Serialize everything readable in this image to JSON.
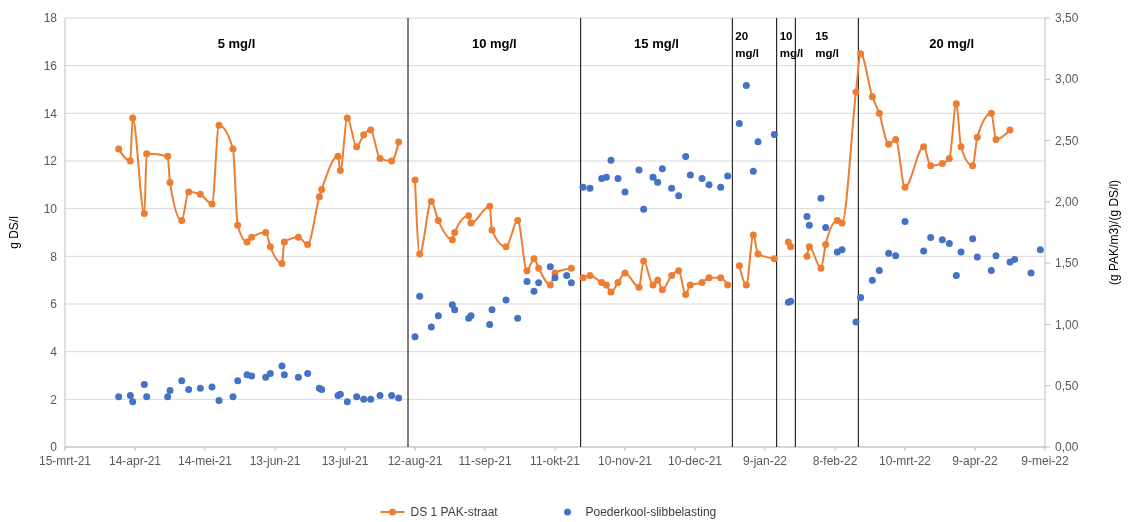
{
  "chart_data": {
    "type": "line",
    "ylabel": "g DS/l",
    "y2label": "(g PAK/m3)/(g DS/l)",
    "xlim": [
      "2021-03-15",
      "2022-05-09"
    ],
    "xticks": [
      {
        "value": "2021-03-15",
        "label": "15-mrt-21"
      },
      {
        "value": "2021-04-14",
        "label": "14-apr-21"
      },
      {
        "value": "2021-05-14",
        "label": "14-mei-21"
      },
      {
        "value": "2021-06-13",
        "label": "13-jun-21"
      },
      {
        "value": "2021-07-13",
        "label": "13-jul-21"
      },
      {
        "value": "2021-08-12",
        "label": "12-aug-21"
      },
      {
        "value": "2021-09-11",
        "label": "11-sep-21"
      },
      {
        "value": "2021-10-11",
        "label": "11-okt-21"
      },
      {
        "value": "2021-11-10",
        "label": "10-nov-21"
      },
      {
        "value": "2021-12-10",
        "label": "10-dec-21"
      },
      {
        "value": "2022-01-09",
        "label": "9-jan-22"
      },
      {
        "value": "2022-02-08",
        "label": "8-feb-22"
      },
      {
        "value": "2022-03-10",
        "label": "10-mrt-22"
      },
      {
        "value": "2022-04-09",
        "label": "9-apr-22"
      },
      {
        "value": "2022-05-09",
        "label": "9-mei-22"
      }
    ],
    "ylim": [
      0,
      18
    ],
    "yticks": [
      0,
      2,
      4,
      6,
      8,
      10,
      12,
      14,
      16,
      18
    ],
    "y2lim": [
      0,
      3.5
    ],
    "y2ticks": [
      {
        "value": 0,
        "label": "0,00"
      },
      {
        "value": 0.5,
        "label": "0,50"
      },
      {
        "value": 1,
        "label": "1,00"
      },
      {
        "value": 1.5,
        "label": "1,50"
      },
      {
        "value": 2,
        "label": "2,00"
      },
      {
        "value": 2.5,
        "label": "2,50"
      },
      {
        "value": 3,
        "label": "3,00"
      },
      {
        "value": 3.5,
        "label": "3,50"
      }
    ],
    "grid": "y",
    "legend": "bottom",
    "series": [
      {
        "name": "DS 1 PAK-straat",
        "color": "#ed7d31",
        "marker": "circle",
        "x": [
          "2021-04-07",
          "2021-04-12",
          "2021-04-13",
          "2021-04-18",
          "2021-04-19",
          "2021-04-28",
          "2021-04-29",
          "2021-05-04",
          "2021-05-07",
          "2021-05-12",
          "2021-05-17",
          "2021-05-20",
          "2021-05-26",
          "2021-05-28",
          "2021-06-01",
          "2021-06-03",
          "2021-06-09",
          "2021-06-11",
          "2021-06-16",
          "2021-06-17",
          "2021-06-23",
          "2021-06-27",
          "2021-07-02",
          "2021-07-03",
          "2021-07-10",
          "2021-07-11",
          "2021-07-14",
          "2021-07-18",
          "2021-07-21",
          "2021-07-24",
          "2021-07-28",
          "2021-08-02",
          "2021-08-05",
          "2021-08-09",
          "2021-08-12",
          "2021-08-14",
          "2021-08-19",
          "2021-08-22",
          "2021-08-28",
          "2021-08-29",
          "2021-09-04",
          "2021-09-05",
          "2021-09-13",
          "2021-09-14",
          "2021-09-20",
          "2021-09-25",
          "2021-09-29",
          "2021-10-02",
          "2021-10-04",
          "2021-10-09",
          "2021-10-11",
          "2021-10-18",
          "2021-10-22",
          "2021-10-23",
          "2021-10-26",
          "2021-10-31",
          "2021-11-02",
          "2021-11-04",
          "2021-11-07",
          "2021-11-10",
          "2021-11-16",
          "2021-11-18",
          "2021-11-22",
          "2021-11-24",
          "2021-11-26",
          "2021-11-30",
          "2021-12-03",
          "2021-12-06",
          "2021-12-08",
          "2021-12-13",
          "2021-12-16",
          "2021-12-21",
          "2021-12-24",
          "2021-12-26",
          "2021-12-29",
          "2022-01-01",
          "2022-01-04",
          "2022-01-06",
          "2022-01-13",
          "2022-01-14",
          "2022-01-19",
          "2022-01-20",
          "2022-01-22",
          "2022-01-27",
          "2022-01-28",
          "2022-02-02",
          "2022-02-04",
          "2022-02-09",
          "2022-02-11",
          "2022-02-17",
          "2022-02-19",
          "2022-02-24",
          "2022-02-27",
          "2022-03-03",
          "2022-03-06",
          "2022-03-10",
          "2022-03-18",
          "2022-03-21",
          "2022-03-26",
          "2022-03-29",
          "2022-04-01",
          "2022-04-03",
          "2022-04-08",
          "2022-04-10",
          "2022-04-16",
          "2022-04-18",
          "2022-04-24"
        ],
        "values": [
          12.5,
          12.0,
          13.8,
          9.8,
          12.3,
          12.2,
          11.1,
          9.5,
          10.7,
          10.6,
          10.2,
          13.5,
          12.5,
          9.3,
          8.6,
          8.8,
          9.0,
          8.4,
          7.7,
          8.6,
          8.8,
          8.5,
          10.5,
          10.8,
          12.2,
          11.6,
          13.8,
          12.6,
          13.1,
          13.3,
          12.1,
          12.0,
          12.8,
          null,
          11.2,
          8.1,
          10.3,
          9.5,
          8.7,
          9.0,
          9.7,
          9.4,
          10.1,
          9.1,
          8.4,
          9.5,
          7.4,
          7.9,
          7.5,
          6.8,
          7.3,
          7.5,
          null,
          7.1,
          7.2,
          6.9,
          6.8,
          6.5,
          6.9,
          7.3,
          6.7,
          7.8,
          6.8,
          7.0,
          6.6,
          7.2,
          7.4,
          6.4,
          6.8,
          6.9,
          7.1,
          7.1,
          6.8,
          null,
          7.6,
          6.8,
          8.9,
          8.1,
          7.9,
          null,
          8.6,
          8.4,
          null,
          8.0,
          8.4,
          7.5,
          8.5,
          9.5,
          9.4,
          14.9,
          16.5,
          14.7,
          14.0,
          12.7,
          12.9,
          10.9,
          12.6,
          11.8,
          11.9,
          12.1,
          14.4,
          12.6,
          11.8,
          13.0,
          14.0,
          12.9,
          13.3
        ]
      },
      {
        "name": "Poederkool-slibbelasting",
        "type": "scatter",
        "axis": "y2",
        "color": "#4472c4",
        "x": [
          "2021-04-07",
          "2021-04-12",
          "2021-04-13",
          "2021-04-18",
          "2021-04-19",
          "2021-04-28",
          "2021-04-29",
          "2021-05-04",
          "2021-05-07",
          "2021-05-12",
          "2021-05-17",
          "2021-05-20",
          "2021-05-26",
          "2021-05-28",
          "2021-06-01",
          "2021-06-03",
          "2021-06-09",
          "2021-06-11",
          "2021-06-16",
          "2021-06-17",
          "2021-06-23",
          "2021-06-27",
          "2021-07-02",
          "2021-07-03",
          "2021-07-10",
          "2021-07-11",
          "2021-07-14",
          "2021-07-18",
          "2021-07-21",
          "2021-07-24",
          "2021-07-28",
          "2021-08-02",
          "2021-08-05",
          "2021-08-12",
          "2021-08-14",
          "2021-08-19",
          "2021-08-22",
          "2021-08-28",
          "2021-08-29",
          "2021-09-04",
          "2021-09-05",
          "2021-09-13",
          "2021-09-14",
          "2021-09-20",
          "2021-09-25",
          "2021-09-29",
          "2021-10-02",
          "2021-10-04",
          "2021-10-09",
          "2021-10-11",
          "2021-10-16",
          "2021-10-18",
          "2021-10-23",
          "2021-10-26",
          "2021-10-31",
          "2021-11-02",
          "2021-11-04",
          "2021-11-07",
          "2021-11-10",
          "2021-11-16",
          "2021-11-18",
          "2021-11-22",
          "2021-11-24",
          "2021-11-26",
          "2021-11-30",
          "2021-12-03",
          "2021-12-06",
          "2021-12-08",
          "2021-12-13",
          "2021-12-16",
          "2021-12-21",
          "2021-12-24",
          "2021-12-29",
          "2022-01-01",
          "2022-01-04",
          "2022-01-06",
          "2022-01-13",
          "2022-01-19",
          "2022-01-20",
          "2022-01-27",
          "2022-01-28",
          "2022-02-02",
          "2022-02-04",
          "2022-02-09",
          "2022-02-11",
          "2022-02-17",
          "2022-02-19",
          "2022-02-24",
          "2022-02-27",
          "2022-03-03",
          "2022-03-06",
          "2022-03-10",
          "2022-03-18",
          "2022-03-21",
          "2022-03-26",
          "2022-03-29",
          "2022-04-01",
          "2022-04-03",
          "2022-04-08",
          "2022-04-10",
          "2022-04-16",
          "2022-04-18",
          "2022-04-24",
          "2022-04-26",
          "2022-05-03",
          "2022-05-07"
        ],
        "values": [
          0.41,
          0.42,
          0.37,
          0.51,
          0.41,
          0.41,
          0.46,
          0.54,
          0.47,
          0.48,
          0.49,
          0.38,
          0.41,
          0.54,
          0.59,
          0.58,
          0.57,
          0.6,
          0.66,
          0.59,
          0.57,
          0.6,
          0.48,
          0.47,
          0.42,
          0.43,
          0.37,
          0.41,
          0.39,
          0.39,
          0.42,
          0.42,
          0.4,
          0.9,
          1.23,
          0.98,
          1.07,
          1.16,
          1.12,
          1.05,
          1.07,
          1.0,
          1.12,
          1.2,
          1.05,
          1.35,
          1.27,
          1.34,
          1.47,
          1.38,
          1.4,
          1.34,
          2.12,
          2.11,
          2.19,
          2.2,
          2.34,
          2.19,
          2.08,
          2.26,
          1.94,
          2.2,
          2.16,
          2.27,
          2.11,
          2.05,
          2.37,
          2.22,
          2.19,
          2.14,
          2.12,
          2.21,
          2.64,
          2.95,
          2.25,
          2.49,
          2.55,
          1.18,
          1.19,
          1.88,
          1.81,
          2.03,
          1.79,
          1.59,
          1.61,
          1.02,
          1.22,
          1.36,
          1.44,
          1.58,
          1.56,
          1.84,
          1.6,
          1.71,
          1.69,
          1.66,
          1.4,
          1.59,
          1.7,
          1.55,
          1.44,
          1.56,
          1.51,
          1.53,
          1.42,
          1.61
        ]
      }
    ],
    "ref_lines": [
      {
        "axis": "x",
        "value": "2021-08-09",
        "color": "#000000"
      },
      {
        "axis": "x",
        "value": "2021-10-22",
        "color": "#000000"
      },
      {
        "axis": "x",
        "value": "2021-12-26",
        "color": "#000000"
      },
      {
        "axis": "x",
        "value": "2022-01-14",
        "color": "#000000"
      },
      {
        "axis": "x",
        "value": "2022-01-22",
        "color": "#000000"
      },
      {
        "axis": "x",
        "value": "2022-02-18",
        "color": "#000000"
      }
    ],
    "annotations": [
      "5 mg/l",
      "10 mg/l",
      "15 mg/l",
      "20 mg/l",
      "10 mg/l",
      "15 mg/l",
      "20 mg/l"
    ]
  }
}
